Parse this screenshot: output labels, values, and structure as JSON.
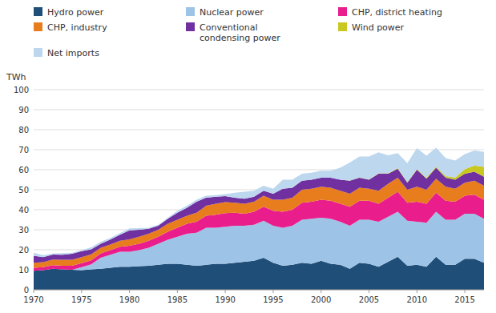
{
  "chart_data": {
    "type": "area",
    "stacked": true,
    "grid": true,
    "legend": "top",
    "y_label": "TWh",
    "x": [
      1970,
      1971,
      1972,
      1973,
      1974,
      1975,
      1976,
      1977,
      1978,
      1979,
      1980,
      1981,
      1982,
      1983,
      1984,
      1985,
      1986,
      1987,
      1988,
      1989,
      1990,
      1991,
      1992,
      1993,
      1994,
      1995,
      1996,
      1997,
      1998,
      1999,
      2000,
      2001,
      2002,
      2003,
      2004,
      2005,
      2006,
      2007,
      2008,
      2009,
      2010,
      2011,
      2012,
      2013,
      2014,
      2015,
      2016,
      2017
    ],
    "xlim": [
      1970,
      2017
    ],
    "xticks": [
      1970,
      1975,
      1980,
      1985,
      1990,
      1995,
      2000,
      2005,
      2010,
      2015
    ],
    "ylim": [
      0,
      100
    ],
    "yticks": [
      0,
      10,
      20,
      30,
      40,
      50,
      60,
      70,
      80,
      90,
      100
    ],
    "series": [
      {
        "name": "Hydro power",
        "color": "#1f4e79",
        "values": [
          9.5,
          9.8,
          10.5,
          10.2,
          10.0,
          9.8,
          10.2,
          10.5,
          11.0,
          11.5,
          11.5,
          11.8,
          12.0,
          12.5,
          13.0,
          13.0,
          12.5,
          12.0,
          12.5,
          13.0,
          13.0,
          13.5,
          14.0,
          14.5,
          16.0,
          13.5,
          12.0,
          12.5,
          13.5,
          13.0,
          14.5,
          13.0,
          12.5,
          10.5,
          13.5,
          13.0,
          11.5,
          14.0,
          16.5,
          12.0,
          12.5,
          11.5,
          16.5,
          12.5,
          12.5,
          15.5,
          15.5,
          13.5
        ]
      },
      {
        "name": "Nuclear power",
        "color": "#9dc3e6",
        "values": [
          0.0,
          0.0,
          0.0,
          0.0,
          0.0,
          1.5,
          2.5,
          5.5,
          6.5,
          7.5,
          7.5,
          8.0,
          9.0,
          10.5,
          12.0,
          13.5,
          15.5,
          16.5,
          18.5,
          18.0,
          18.5,
          18.5,
          18.0,
          18.0,
          18.5,
          18.5,
          19.0,
          19.5,
          21.5,
          22.5,
          21.5,
          22.5,
          21.5,
          21.5,
          21.5,
          22.0,
          22.5,
          22.5,
          22.5,
          22.5,
          21.5,
          22.0,
          22.5,
          22.5,
          22.5,
          22.5,
          22.5,
          22.0
        ]
      },
      {
        "name": "CHP, district heating",
        "color": "#e91e8c",
        "values": [
          1.5,
          1.5,
          1.8,
          1.8,
          2.0,
          2.0,
          2.0,
          2.2,
          2.3,
          2.5,
          3.0,
          3.2,
          3.5,
          3.5,
          4.0,
          4.5,
          5.0,
          5.5,
          6.0,
          6.5,
          6.8,
          6.5,
          6.0,
          6.5,
          7.0,
          7.5,
          8.0,
          8.0,
          8.5,
          8.5,
          9.0,
          9.0,
          9.0,
          9.5,
          9.5,
          9.5,
          9.0,
          9.5,
          10.0,
          9.0,
          10.0,
          9.5,
          9.5,
          9.5,
          9.0,
          9.0,
          9.5,
          9.5
        ]
      },
      {
        "name": "CHP, industry",
        "color": "#e87d1e",
        "values": [
          2.5,
          2.5,
          2.8,
          3.0,
          3.0,
          3.0,
          3.0,
          2.8,
          2.8,
          3.0,
          3.2,
          3.5,
          3.5,
          3.5,
          4.0,
          4.0,
          4.0,
          4.5,
          5.0,
          5.5,
          5.5,
          5.0,
          5.0,
          5.0,
          5.5,
          5.5,
          6.0,
          6.0,
          6.5,
          6.5,
          6.5,
          6.5,
          6.5,
          6.5,
          6.5,
          6.0,
          6.5,
          7.0,
          7.0,
          6.5,
          7.5,
          7.0,
          7.0,
          7.0,
          6.5,
          6.5,
          7.0,
          7.0
        ]
      },
      {
        "name": "Conventional\ncondensing power",
        "color": "#7030a0",
        "values": [
          3.5,
          2.5,
          2.5,
          2.5,
          3.0,
          3.0,
          2.5,
          2.0,
          2.5,
          3.0,
          4.5,
          3.5,
          2.5,
          2.0,
          2.5,
          3.5,
          4.0,
          5.5,
          4.0,
          3.5,
          3.0,
          2.5,
          2.5,
          2.5,
          2.5,
          3.0,
          5.5,
          5.0,
          4.5,
          4.5,
          4.5,
          5.0,
          5.5,
          6.5,
          5.0,
          4.5,
          8.5,
          5.0,
          4.5,
          3.5,
          8.5,
          5.5,
          5.5,
          4.5,
          4.5,
          4.5,
          4.5,
          4.5
        ]
      },
      {
        "name": "Wind power",
        "color": "#c8c820",
        "values": [
          0.0,
          0.0,
          0.0,
          0.0,
          0.0,
          0.0,
          0.0,
          0.0,
          0.0,
          0.0,
          0.0,
          0.0,
          0.0,
          0.0,
          0.0,
          0.0,
          0.0,
          0.0,
          0.0,
          0.0,
          0.0,
          0.0,
          0.0,
          0.0,
          0.0,
          0.0,
          0.0,
          0.0,
          0.0,
          0.0,
          0.0,
          0.0,
          0.0,
          0.1,
          0.1,
          0.1,
          0.2,
          0.2,
          0.3,
          0.3,
          0.3,
          0.5,
          0.5,
          0.8,
          1.1,
          2.3,
          3.1,
          4.9
        ]
      },
      {
        "name": "Net imports",
        "color": "#bdd7ee",
        "values": [
          1.5,
          1.0,
          0.5,
          0.8,
          0.5,
          0.5,
          1.0,
          1.0,
          0.8,
          0.8,
          1.0,
          0.8,
          0.5,
          0.5,
          0.5,
          1.0,
          1.0,
          1.0,
          1.0,
          0.8,
          1.0,
          2.5,
          3.5,
          3.0,
          2.5,
          2.5,
          4.5,
          4.0,
          3.5,
          3.5,
          3.5,
          3.5,
          6.0,
          9.0,
          10.5,
          11.5,
          10.5,
          9.0,
          7.5,
          9.5,
          10.5,
          11.0,
          9.5,
          9.0,
          8.5,
          7.5,
          7.5,
          7.5
        ]
      }
    ]
  }
}
